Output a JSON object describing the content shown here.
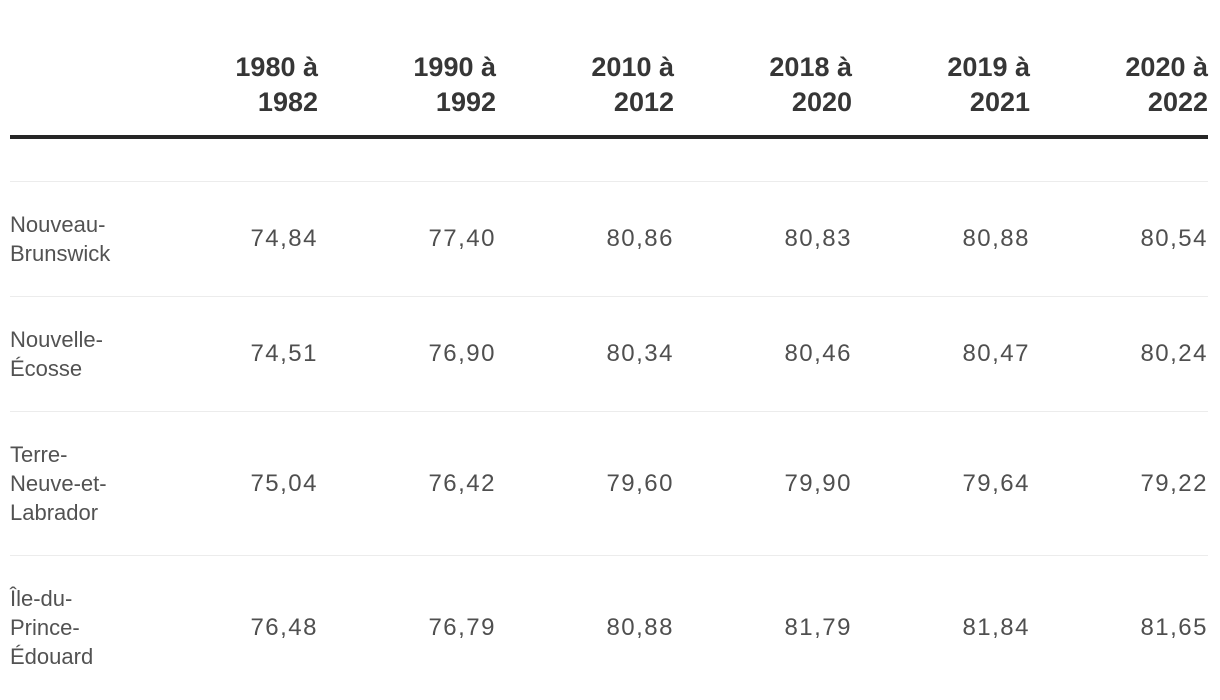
{
  "chart_data": {
    "type": "table",
    "title": "",
    "categories": [
      "1980 à 1982",
      "1990 à 1992",
      "2010 à 2012",
      "2018 à 2020",
      "2019 à 2021",
      "2020 à 2022"
    ],
    "series": [
      {
        "name": "Nouveau-Brunswick",
        "values": [
          74.84,
          77.4,
          80.86,
          80.83,
          80.88,
          80.54
        ]
      },
      {
        "name": "Nouvelle-Écosse",
        "values": [
          74.51,
          76.9,
          80.34,
          80.46,
          80.47,
          80.24
        ]
      },
      {
        "name": "Terre-Neuve-et-Labrador",
        "values": [
          75.04,
          76.42,
          79.6,
          79.9,
          79.64,
          79.22
        ]
      },
      {
        "name": "Île-du-Prince-Édouard",
        "values": [
          76.48,
          76.79,
          80.88,
          81.79,
          81.84,
          81.65
        ]
      }
    ],
    "layout_hints": {
      "decimal_separator": ",",
      "value_alignment": "right",
      "grid": "horizontal-rules-only"
    }
  },
  "table": {
    "headers": [
      {
        "line1": "1980 à",
        "line2": "1982"
      },
      {
        "line1": "1990 à",
        "line2": "1992"
      },
      {
        "line1": "2010 à",
        "line2": "2012"
      },
      {
        "line1": "2018 à",
        "line2": "2020"
      },
      {
        "line1": "2019 à",
        "line2": "2021"
      },
      {
        "line1": "2020 à",
        "line2": "2022"
      }
    ],
    "rows": [
      {
        "label": "Nouveau-Brunswick",
        "values": [
          "74,84",
          "77,40",
          "80,86",
          "80,83",
          "80,88",
          "80,54"
        ]
      },
      {
        "label": "Nouvelle-Écosse",
        "values": [
          "74,51",
          "76,90",
          "80,34",
          "80,46",
          "80,47",
          "80,24"
        ]
      },
      {
        "label": "Terre-Neuve-et-Labrador",
        "values": [
          "75,04",
          "76,42",
          "79,60",
          "79,90",
          "79,64",
          "79,22"
        ]
      },
      {
        "label": "Île-du-Prince-Édouard",
        "values": [
          "76,48",
          "76,79",
          "80,88",
          "81,79",
          "81,84",
          "81,65"
        ]
      }
    ]
  },
  "colors": {
    "background": "#ffffff",
    "header_text": "#363636",
    "body_text": "#4f4f4f",
    "thick_rule": "#262626",
    "thin_rule": "#ececec"
  }
}
